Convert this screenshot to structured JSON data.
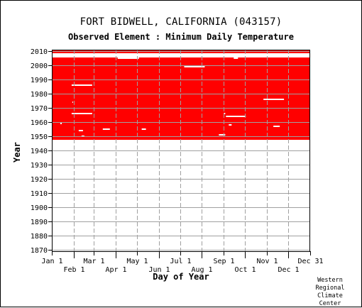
{
  "title": "FORT BIDWELL, CALIFORNIA   (043157)",
  "subtitle": "Observed Element : Minimum Daily Temperature",
  "credit": [
    "Western",
    "Regional",
    "Climate",
    "Center"
  ],
  "colors": {
    "data": "#ff0000",
    "grid": "#a0a0a0",
    "axis": "#000000",
    "gap": "#ffffff"
  },
  "chart_data": {
    "type": "heatmap",
    "xlabel": "Day of Year",
    "ylabel": "Year",
    "x_domain": [
      1,
      366
    ],
    "y_domain": [
      1870,
      2010
    ],
    "y_ticks": [
      1870,
      1880,
      1890,
      1900,
      1910,
      1920,
      1930,
      1940,
      1950,
      1960,
      1970,
      1980,
      1990,
      2000,
      2010
    ],
    "x_ticks_upper": [
      {
        "label": "Jan 1",
        "day": 1
      },
      {
        "label": "Mar 1",
        "day": 60
      },
      {
        "label": "May 1",
        "day": 121
      },
      {
        "label": "Jul 1",
        "day": 182
      },
      {
        "label": "Sep 1",
        "day": 244
      },
      {
        "label": "Nov 1",
        "day": 305
      },
      {
        "label": "Dec 31",
        "day": 366
      }
    ],
    "x_ticks_lower": [
      {
        "label": "Feb 1",
        "day": 32
      },
      {
        "label": "Apr 1",
        "day": 91
      },
      {
        "label": "Jun 1",
        "day": 152
      },
      {
        "label": "Aug 1",
        "day": 213
      },
      {
        "label": "Oct 1",
        "day": 274
      },
      {
        "label": "Dec 1",
        "day": 335
      }
    ],
    "grid": true,
    "observed_blocks": [
      {
        "day_start": 1,
        "day_end": 366,
        "year_start": 1948,
        "year_end": 2005
      },
      {
        "day_start": 1,
        "day_end": 366,
        "year_start": 2009,
        "year_end": 2010
      }
    ],
    "missing_segments": [
      {
        "year": 1986,
        "day_start": 29,
        "day_end": 58
      },
      {
        "year": 1966,
        "day_start": 29,
        "day_end": 58
      },
      {
        "year": 1999,
        "day_start": 188,
        "day_end": 217
      },
      {
        "year": 1964,
        "day_start": 247,
        "day_end": 275
      },
      {
        "year": 1976,
        "day_start": 300,
        "day_end": 329
      },
      {
        "year": 1951,
        "day_start": 237,
        "day_end": 246
      },
      {
        "year": 1955,
        "day_start": 73,
        "day_end": 83
      },
      {
        "year": 1957,
        "day_start": 314,
        "day_end": 323
      },
      {
        "year": 1958,
        "day_start": 251,
        "day_end": 255
      },
      {
        "year": 1959,
        "day_start": 13,
        "day_end": 15
      },
      {
        "year": 1954,
        "day_start": 39,
        "day_end": 45
      },
      {
        "year": 1950,
        "day_start": 43,
        "day_end": 47
      },
      {
        "year": 1955,
        "day_start": 128,
        "day_end": 134
      },
      {
        "year": 1966,
        "day_start": 244,
        "day_end": 246
      },
      {
        "year": 1974,
        "day_start": 30,
        "day_end": 31
      },
      {
        "year": 2006,
        "day_start": 1,
        "day_end": 30
      },
      {
        "year": 2007,
        "day_start": 30,
        "day_end": 175
      },
      {
        "year": 2008,
        "day_start": 1,
        "day_end": 366
      },
      {
        "year": 2005,
        "day_start": 94,
        "day_end": 124
      },
      {
        "year": 2005,
        "day_start": 258,
        "day_end": 264
      },
      {
        "year": 2008,
        "day_start": 25,
        "day_end": 34
      },
      {
        "year": 2006,
        "day_start": 176,
        "day_end": 214
      },
      {
        "year": 2006,
        "day_start": 303,
        "day_end": 330
      }
    ]
  }
}
